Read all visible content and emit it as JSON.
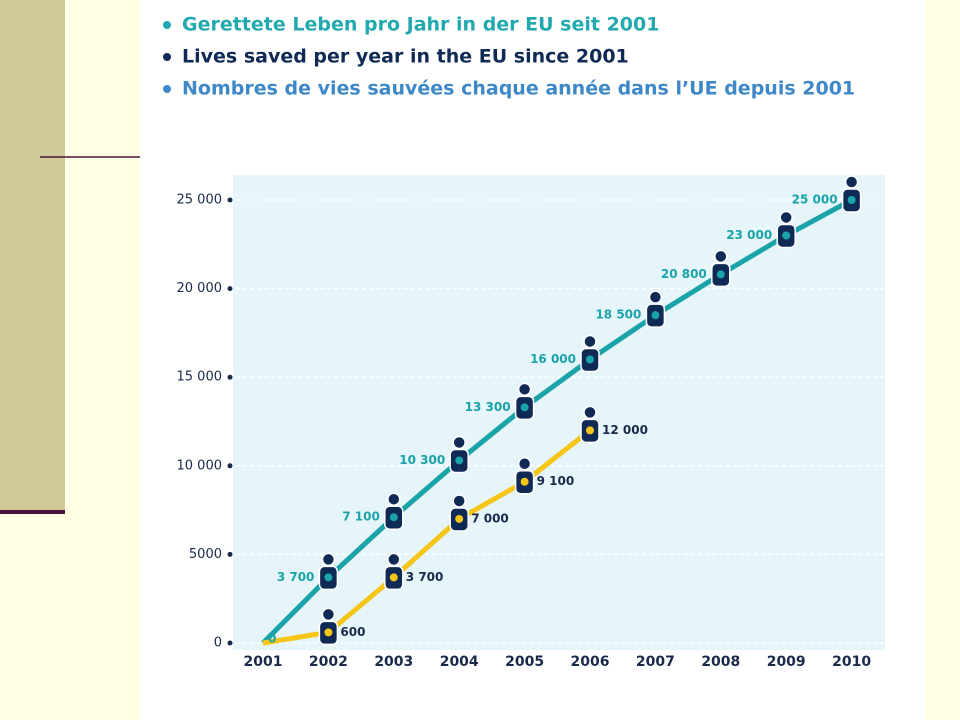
{
  "chart_data": {
    "type": "line",
    "titles": [
      "Gerettete Leben pro Jahr in der EU seit 2001",
      "Lives saved per year in the EU since 2001",
      "Nombres de vies sauvées chaque année dans l’UE depuis 2001"
    ],
    "title_colors": [
      "#22a9b0",
      "#0f2a55",
      "#3f88c8"
    ],
    "categories": [
      "2001",
      "2002",
      "2003",
      "2004",
      "2005",
      "2006",
      "2007",
      "2008",
      "2009",
      "2010"
    ],
    "series": [
      {
        "color": "#1aa3a8",
        "values": [
          0,
          3700,
          7100,
          10300,
          13300,
          16000,
          18500,
          20800,
          23000,
          25000
        ],
        "value_labels": [
          "0",
          "3 700",
          "7 100",
          "10 300",
          "13 300",
          "16 000",
          "18 500",
          "20 800",
          "23 000",
          "25 000"
        ]
      },
      {
        "color": "#f5c518",
        "values": [
          0,
          600,
          3700,
          7000,
          9100,
          12000,
          null,
          null,
          null,
          null
        ],
        "value_labels": [
          null,
          "600",
          "3 700",
          "7 000",
          "9 100",
          "12 000",
          null,
          null,
          null,
          null
        ]
      }
    ],
    "ylim": [
      0,
      25000
    ],
    "yticks": [
      0,
      5000,
      {
        "value": 10000,
        "label": "10 000"
      },
      {
        "value": 15000,
        "label": "15 000"
      },
      {
        "value": 20000,
        "label": "20 000"
      },
      {
        "value": 25000,
        "label": "25 000"
      }
    ],
    "grid": true
  }
}
